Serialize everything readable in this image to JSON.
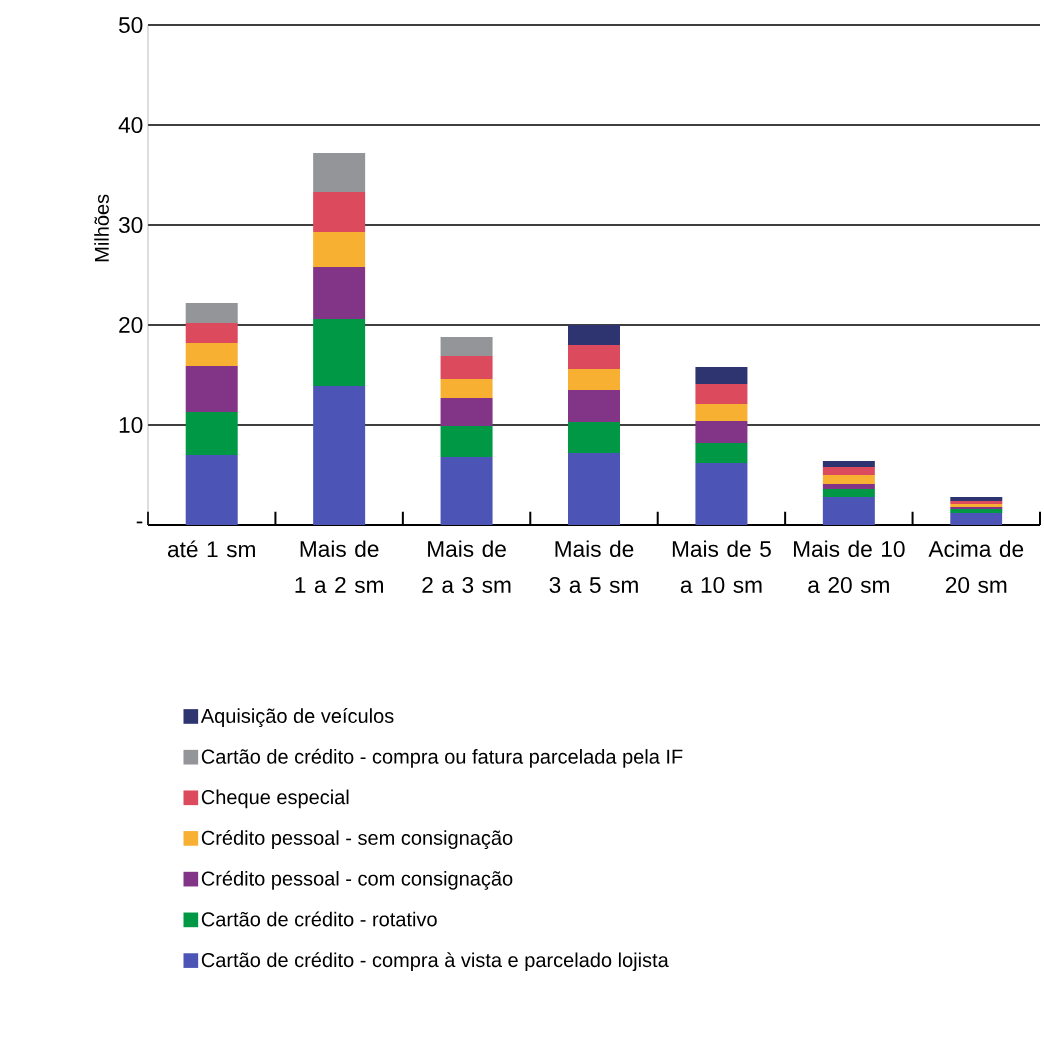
{
  "chart_data": {
    "type": "bar",
    "stacked": true,
    "ylabel": "Milhões",
    "categories": [
      "até 1 sm",
      "Mais de 1 a 2 sm",
      "Mais de 2 a 3 sm",
      "Mais de 3 a 5 sm",
      "Mais de 5 a 10 sm",
      "Mais de 10 a 20 sm",
      "Acima de 20 sm"
    ],
    "series": [
      {
        "name": "Cartão de crédito - compra à vista e parcelado lojista",
        "color": "#4c55b5",
        "values": [
          7.0,
          13.9,
          6.8,
          7.2,
          6.2,
          2.8,
          1.2
        ]
      },
      {
        "name": "Cartão de crédito - rotativo",
        "color": "#009845",
        "values": [
          4.3,
          6.7,
          3.1,
          3.1,
          2.0,
          0.8,
          0.4
        ]
      },
      {
        "name": "Crédito pessoal - com consignação",
        "color": "#823586",
        "values": [
          4.6,
          5.2,
          2.8,
          3.2,
          2.2,
          0.5,
          0.2
        ]
      },
      {
        "name": "Crédito pessoal - sem consignação",
        "color": "#f7b032",
        "values": [
          2.3,
          3.5,
          1.9,
          2.1,
          1.7,
          0.9,
          0.3
        ]
      },
      {
        "name": "Cheque especial",
        "color": "#dc4a5e",
        "values": [
          2.0,
          4.0,
          2.3,
          2.4,
          2.0,
          0.8,
          0.3
        ]
      },
      {
        "name": "Cartão de crédito - compra ou fatura parcelada pela IF",
        "color": "#939598",
        "values": [
          2.0,
          3.9,
          1.9,
          0,
          0,
          0,
          0
        ]
      },
      {
        "name": "Aquisição de veículos",
        "color": "#2e3470",
        "values": [
          0,
          0,
          0,
          2.0,
          1.7,
          0.6,
          0.4
        ]
      }
    ],
    "ylim": [
      0,
      50
    ],
    "yticks": [
      {
        "value": 0,
        "label": "-"
      },
      10,
      20,
      30,
      40,
      50
    ],
    "grid": "y",
    "legend": "bottom"
  }
}
